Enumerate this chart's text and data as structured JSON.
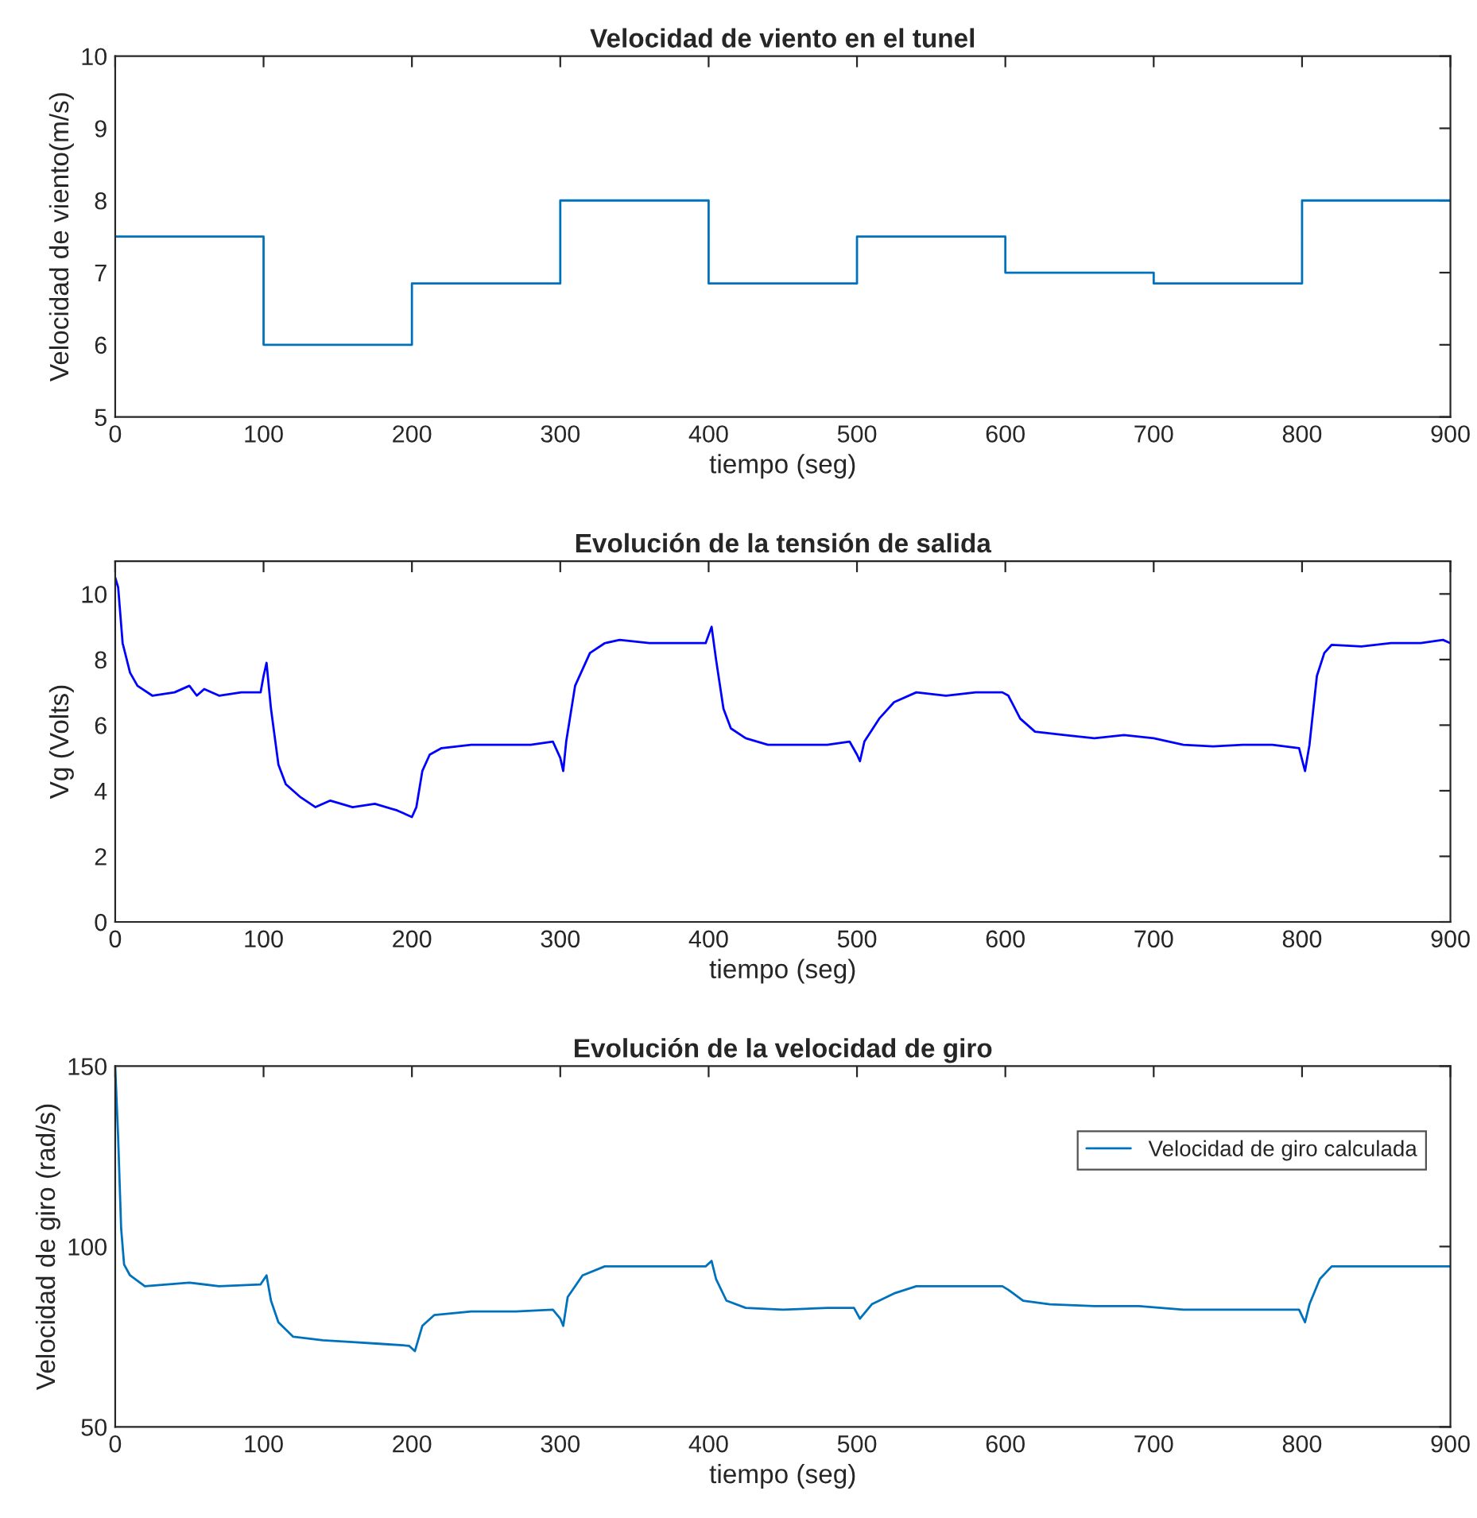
{
  "chart_data": [
    {
      "type": "step",
      "title": "Velocidad de viento en el tunel",
      "xlabel": "tiempo (seg)",
      "ylabel": "Velocidad de viento(m/s)",
      "xlim": [
        0,
        900
      ],
      "xticks": [
        0,
        100,
        200,
        300,
        400,
        500,
        600,
        700,
        800,
        900
      ],
      "ylim": [
        5,
        10
      ],
      "yticks": [
        5,
        6,
        7,
        8,
        9,
        10
      ],
      "grid": false,
      "legend": false,
      "x": [
        0,
        100,
        200,
        300,
        400,
        500,
        600,
        700,
        800,
        900
      ],
      "series": [
        {
          "color": "#0072bd",
          "values": [
            7.5,
            6,
            6.85,
            8,
            6.85,
            7.5,
            7.0,
            6.85,
            8,
            8
          ]
        }
      ]
    },
    {
      "type": "line",
      "title": "Evolución de la tensión de salida",
      "xlabel": "tiempo (seg)",
      "ylabel": "Vg (Volts)",
      "xlim": [
        0,
        900
      ],
      "xticks": [
        0,
        100,
        200,
        300,
        400,
        500,
        600,
        700,
        800,
        900
      ],
      "ylim": [
        0,
        11
      ],
      "yticks": [
        0,
        2,
        4,
        6,
        8,
        10
      ],
      "grid": false,
      "legend": false,
      "x": [
        0,
        2,
        5,
        10,
        15,
        25,
        40,
        50,
        55,
        60,
        70,
        85,
        98,
        100,
        102,
        105,
        110,
        115,
        125,
        135,
        145,
        160,
        175,
        190,
        200,
        203,
        207,
        212,
        220,
        240,
        260,
        280,
        295,
        300,
        302,
        304,
        310,
        320,
        330,
        340,
        350,
        360,
        380,
        398,
        402,
        405,
        410,
        415,
        425,
        440,
        460,
        480,
        495,
        500,
        502,
        505,
        515,
        525,
        540,
        560,
        580,
        598,
        602,
        610,
        620,
        640,
        660,
        680,
        700,
        720,
        740,
        760,
        780,
        798,
        802,
        805,
        810,
        815,
        820,
        840,
        860,
        880,
        895,
        900
      ],
      "series": [
        {
          "color": "#0000ff",
          "values": [
            10.5,
            10.2,
            8.5,
            7.6,
            7.2,
            6.9,
            7.0,
            7.2,
            6.9,
            7.1,
            6.9,
            7.0,
            7.0,
            7.5,
            7.9,
            6.5,
            4.8,
            4.2,
            3.8,
            3.5,
            3.7,
            3.5,
            3.6,
            3.4,
            3.2,
            3.5,
            4.6,
            5.1,
            5.3,
            5.4,
            5.4,
            5.4,
            5.5,
            5.0,
            4.6,
            5.5,
            7.2,
            8.2,
            8.5,
            8.6,
            8.55,
            8.5,
            8.5,
            8.5,
            9.0,
            8.0,
            6.5,
            5.9,
            5.6,
            5.4,
            5.4,
            5.4,
            5.5,
            5.1,
            4.9,
            5.5,
            6.2,
            6.7,
            7.0,
            6.9,
            7.0,
            7.0,
            6.9,
            6.2,
            5.8,
            5.7,
            5.6,
            5.7,
            5.6,
            5.4,
            5.35,
            5.4,
            5.4,
            5.3,
            4.6,
            5.4,
            7.5,
            8.2,
            8.45,
            8.4,
            8.5,
            8.5,
            8.6,
            8.5
          ]
        }
      ]
    },
    {
      "type": "line",
      "title": "Evolución de la velocidad de giro",
      "xlabel": "tiempo (seg)",
      "ylabel": "Velocidad de giro (rad/s)",
      "xlim": [
        0,
        900
      ],
      "xticks": [
        0,
        100,
        200,
        300,
        400,
        500,
        600,
        700,
        800,
        900
      ],
      "ylim": [
        50,
        150
      ],
      "yticks": [
        50,
        100,
        150
      ],
      "grid": false,
      "legend": "top right",
      "x": [
        0,
        2,
        4,
        6,
        10,
        20,
        50,
        70,
        98,
        102,
        105,
        110,
        120,
        140,
        160,
        180,
        198,
        202,
        207,
        215,
        240,
        270,
        295,
        300,
        302,
        305,
        315,
        330,
        360,
        398,
        402,
        405,
        412,
        425,
        450,
        480,
        498,
        502,
        510,
        525,
        540,
        570,
        598,
        602,
        612,
        630,
        660,
        690,
        720,
        760,
        798,
        802,
        805,
        812,
        820,
        860,
        900
      ],
      "series": [
        {
          "name": "Velocidad de giro calculada",
          "color": "#0072bd",
          "values": [
            150,
            130,
            105,
            95,
            92,
            89,
            90,
            89,
            89.5,
            92,
            85,
            79,
            75,
            74,
            73.5,
            73,
            72.5,
            71,
            78,
            81,
            82,
            82,
            82.5,
            80,
            78,
            86,
            92,
            94.5,
            94.5,
            94.5,
            96,
            91,
            85,
            83,
            82.5,
            83,
            83,
            80,
            84,
            87,
            89,
            89,
            89,
            88,
            85,
            84,
            83.5,
            83.5,
            82.5,
            82.5,
            82.5,
            79,
            84,
            91,
            94.5,
            94.5,
            94.5
          ]
        }
      ]
    }
  ]
}
